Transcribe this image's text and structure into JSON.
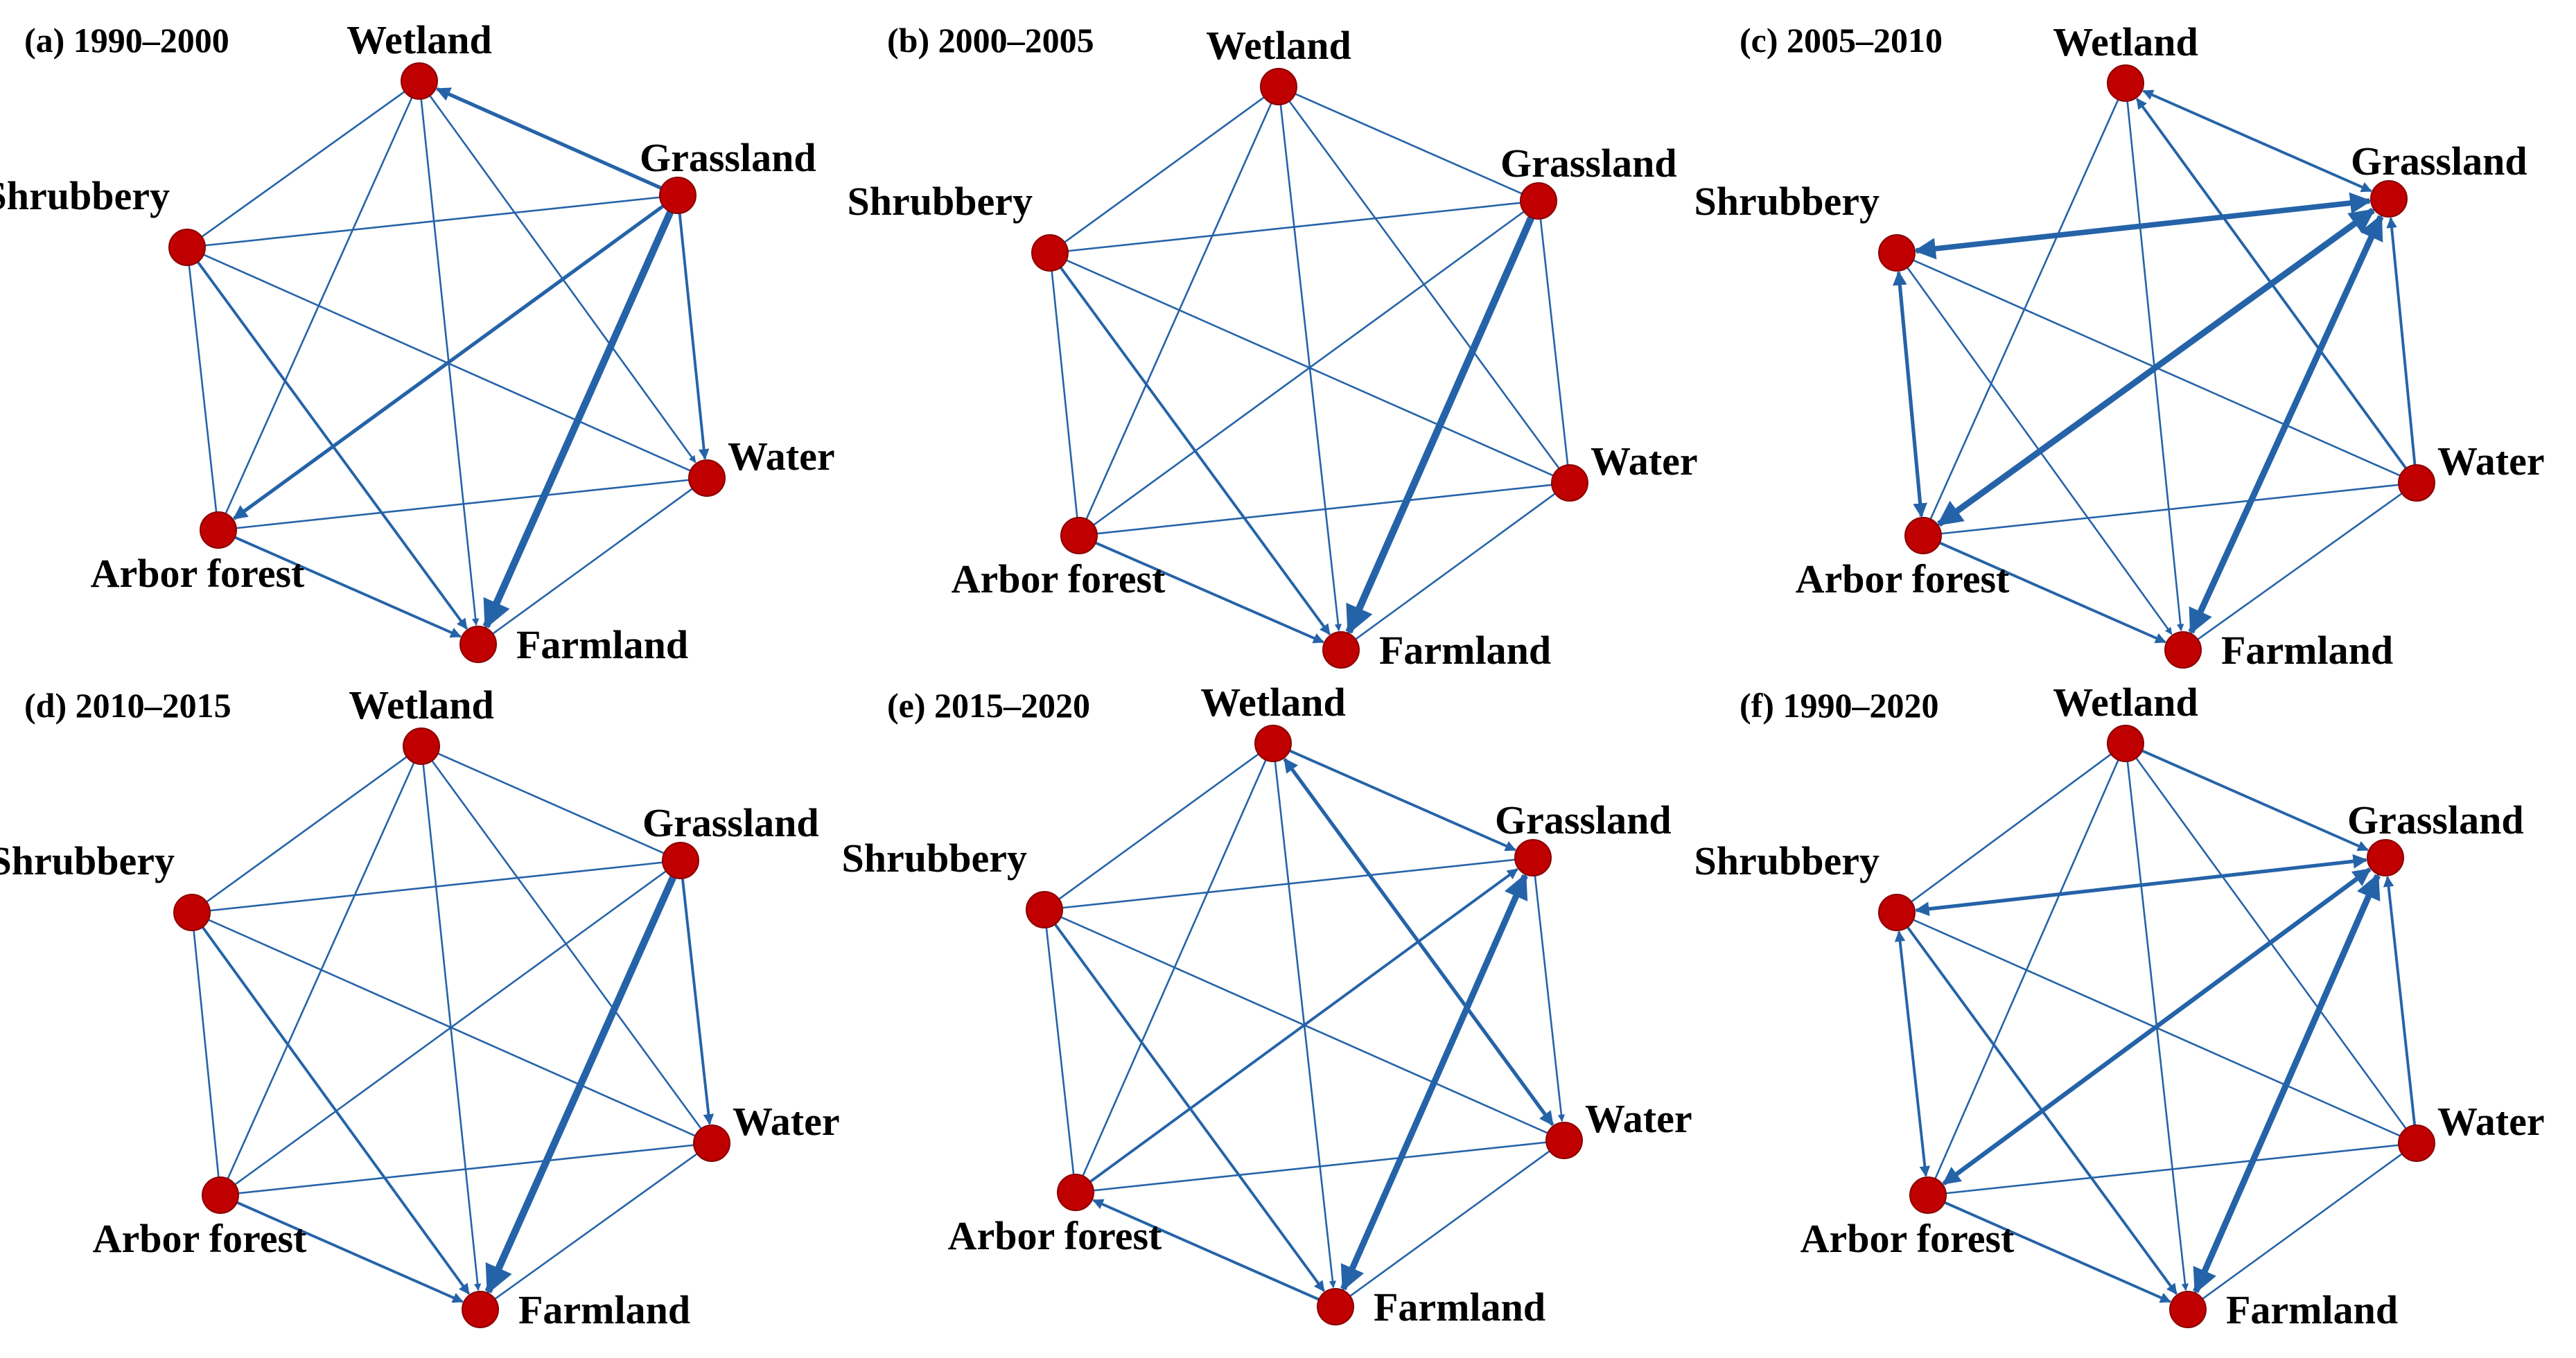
{
  "colors": {
    "edge": "#2563a8",
    "node_fill": "#c00000",
    "node_stroke": "#8a0000",
    "text": "#000000"
  },
  "panels": [
    {
      "title": "(a) 1990–2000",
      "labels": {
        "Wetland": "Wetland",
        "Grassland": "Grassland",
        "Water": "Water",
        "Farmland": "Farmland",
        "Arbor forest": "Arbor forest",
        "Shrubbery": "Shrubbery"
      },
      "edges": [
        {
          "from": "Grassland",
          "to": "Farmland",
          "weight": 4,
          "arrow": "to"
        },
        {
          "from": "Grassland",
          "to": "Arbor forest",
          "weight": 2,
          "arrow": "to"
        },
        {
          "from": "Grassland",
          "to": "Wetland",
          "weight": 2,
          "arrow": "to"
        },
        {
          "from": "Grassland",
          "to": "Water",
          "weight": 1.5,
          "arrow": "to"
        },
        {
          "from": "Shrubbery",
          "to": "Farmland",
          "weight": 1.5,
          "arrow": "to"
        },
        {
          "from": "Arbor forest",
          "to": "Farmland",
          "weight": 1.5,
          "arrow": "to"
        },
        {
          "from": "Wetland",
          "to": "Farmland",
          "weight": 1,
          "arrow": "to"
        },
        {
          "from": "Wetland",
          "to": "Water",
          "weight": 1,
          "arrow": "to"
        },
        {
          "from": "Wetland",
          "to": "Shrubbery",
          "weight": 1,
          "arrow": "none"
        },
        {
          "from": "Wetland",
          "to": "Arbor forest",
          "weight": 1,
          "arrow": "none"
        },
        {
          "from": "Shrubbery",
          "to": "Grassland",
          "weight": 1,
          "arrow": "none"
        },
        {
          "from": "Shrubbery",
          "to": "Water",
          "weight": 1,
          "arrow": "none"
        },
        {
          "from": "Shrubbery",
          "to": "Arbor forest",
          "weight": 1,
          "arrow": "none"
        },
        {
          "from": "Arbor forest",
          "to": "Water",
          "weight": 1,
          "arrow": "none"
        },
        {
          "from": "Water",
          "to": "Farmland",
          "weight": 1,
          "arrow": "none"
        }
      ]
    },
    {
      "title": "(b) 2000–2005",
      "labels": {
        "Wetland": "Wetland",
        "Grassland": "Grassland",
        "Water": "Water",
        "Farmland": "Farmland",
        "Arbor forest": "Arbor forest",
        "Shrubbery": "Shrubbery"
      },
      "edges": [
        {
          "from": "Grassland",
          "to": "Farmland",
          "weight": 4,
          "arrow": "to"
        },
        {
          "from": "Shrubbery",
          "to": "Farmland",
          "weight": 1.5,
          "arrow": "to"
        },
        {
          "from": "Arbor forest",
          "to": "Farmland",
          "weight": 1.5,
          "arrow": "to"
        },
        {
          "from": "Wetland",
          "to": "Farmland",
          "weight": 1,
          "arrow": "to"
        },
        {
          "from": "Wetland",
          "to": "Grassland",
          "weight": 1,
          "arrow": "none"
        },
        {
          "from": "Wetland",
          "to": "Water",
          "weight": 1,
          "arrow": "none"
        },
        {
          "from": "Wetland",
          "to": "Shrubbery",
          "weight": 1,
          "arrow": "none"
        },
        {
          "from": "Wetland",
          "to": "Arbor forest",
          "weight": 1,
          "arrow": "none"
        },
        {
          "from": "Shrubbery",
          "to": "Grassland",
          "weight": 1,
          "arrow": "none"
        },
        {
          "from": "Shrubbery",
          "to": "Water",
          "weight": 1,
          "arrow": "none"
        },
        {
          "from": "Shrubbery",
          "to": "Arbor forest",
          "weight": 1,
          "arrow": "none"
        },
        {
          "from": "Arbor forest",
          "to": "Grassland",
          "weight": 1,
          "arrow": "none"
        },
        {
          "from": "Arbor forest",
          "to": "Water",
          "weight": 1,
          "arrow": "none"
        },
        {
          "from": "Grassland",
          "to": "Water",
          "weight": 1,
          "arrow": "none"
        },
        {
          "from": "Water",
          "to": "Farmland",
          "weight": 1,
          "arrow": "none"
        }
      ]
    },
    {
      "title": "(c) 2005–2010",
      "labels": {
        "Wetland": "Wetland",
        "Grassland": "Grassland",
        "Water": "Water",
        "Farmland": "Farmland",
        "Arbor forest": "Arbor forest",
        "Shrubbery": "Shrubbery"
      },
      "edges": [
        {
          "from": "Grassland",
          "to": "Farmland",
          "weight": 3.5,
          "arrow": "both"
        },
        {
          "from": "Grassland",
          "to": "Arbor forest",
          "weight": 3.5,
          "arrow": "both"
        },
        {
          "from": "Grassland",
          "to": "Shrubbery",
          "weight": 3,
          "arrow": "both"
        },
        {
          "from": "Shrubbery",
          "to": "Arbor forest",
          "weight": 2,
          "arrow": "both"
        },
        {
          "from": "Wetland",
          "to": "Grassland",
          "weight": 1.5,
          "arrow": "both"
        },
        {
          "from": "Water",
          "to": "Grassland",
          "weight": 1.5,
          "arrow": "to"
        },
        {
          "from": "Water",
          "to": "Wetland",
          "weight": 1.5,
          "arrow": "to"
        },
        {
          "from": "Arbor forest",
          "to": "Farmland",
          "weight": 1.5,
          "arrow": "to"
        },
        {
          "from": "Shrubbery",
          "to": "Farmland",
          "weight": 1,
          "arrow": "to"
        },
        {
          "from": "Wetland",
          "to": "Farmland",
          "weight": 1,
          "arrow": "to"
        },
        {
          "from": "Wetland",
          "to": "Arbor forest",
          "weight": 1,
          "arrow": "none"
        },
        {
          "from": "Shrubbery",
          "to": "Water",
          "weight": 1,
          "arrow": "none"
        },
        {
          "from": "Arbor forest",
          "to": "Water",
          "weight": 1,
          "arrow": "none"
        },
        {
          "from": "Water",
          "to": "Farmland",
          "weight": 1,
          "arrow": "none"
        }
      ]
    },
    {
      "title": "(d) 2010–2015",
      "labels": {
        "Wetland": "Wetland",
        "Grassland": "Grassland",
        "Water": "Water",
        "Farmland": "Farmland",
        "Arbor forest": "Arbor forest",
        "Shrubbery": "Shrubbery"
      },
      "edges": [
        {
          "from": "Grassland",
          "to": "Farmland",
          "weight": 4,
          "arrow": "to"
        },
        {
          "from": "Grassland",
          "to": "Water",
          "weight": 1.5,
          "arrow": "to"
        },
        {
          "from": "Arbor forest",
          "to": "Farmland",
          "weight": 1.5,
          "arrow": "to"
        },
        {
          "from": "Shrubbery",
          "to": "Farmland",
          "weight": 1.5,
          "arrow": "to"
        },
        {
          "from": "Wetland",
          "to": "Farmland",
          "weight": 1,
          "arrow": "to"
        },
        {
          "from": "Wetland",
          "to": "Grassland",
          "weight": 1,
          "arrow": "none"
        },
        {
          "from": "Wetland",
          "to": "Water",
          "weight": 1,
          "arrow": "none"
        },
        {
          "from": "Wetland",
          "to": "Shrubbery",
          "weight": 1,
          "arrow": "none"
        },
        {
          "from": "Wetland",
          "to": "Arbor forest",
          "weight": 1,
          "arrow": "none"
        },
        {
          "from": "Shrubbery",
          "to": "Grassland",
          "weight": 1,
          "arrow": "none"
        },
        {
          "from": "Shrubbery",
          "to": "Water",
          "weight": 1,
          "arrow": "none"
        },
        {
          "from": "Shrubbery",
          "to": "Arbor forest",
          "weight": 1,
          "arrow": "none"
        },
        {
          "from": "Arbor forest",
          "to": "Grassland",
          "weight": 1,
          "arrow": "none"
        },
        {
          "from": "Arbor forest",
          "to": "Water",
          "weight": 1,
          "arrow": "none"
        },
        {
          "from": "Water",
          "to": "Farmland",
          "weight": 1,
          "arrow": "none"
        }
      ]
    },
    {
      "title": "(e) 2015–2020",
      "labels": {
        "Wetland": "Wetland",
        "Grassland": "Grassland",
        "Water": "Water",
        "Farmland": "Farmland",
        "Arbor forest": "Arbor forest",
        "Shrubbery": "Shrubbery"
      },
      "edges": [
        {
          "from": "Farmland",
          "to": "Grassland",
          "weight": 3.5,
          "arrow": "both"
        },
        {
          "from": "Wetland",
          "to": "Water",
          "weight": 2,
          "arrow": "both"
        },
        {
          "from": "Arbor forest",
          "to": "Grassland",
          "weight": 1.5,
          "arrow": "to"
        },
        {
          "from": "Farmland",
          "to": "Arbor forest",
          "weight": 1.5,
          "arrow": "to"
        },
        {
          "from": "Wetland",
          "to": "Grassland",
          "weight": 1.5,
          "arrow": "to"
        },
        {
          "from": "Shrubbery",
          "to": "Farmland",
          "weight": 1.5,
          "arrow": "to"
        },
        {
          "from": "Grassland",
          "to": "Water",
          "weight": 1,
          "arrow": "to"
        },
        {
          "from": "Wetland",
          "to": "Farmland",
          "weight": 1,
          "arrow": "to"
        },
        {
          "from": "Wetland",
          "to": "Shrubbery",
          "weight": 1,
          "arrow": "none"
        },
        {
          "from": "Wetland",
          "to": "Arbor forest",
          "weight": 1,
          "arrow": "none"
        },
        {
          "from": "Shrubbery",
          "to": "Grassland",
          "weight": 1,
          "arrow": "none"
        },
        {
          "from": "Shrubbery",
          "to": "Water",
          "weight": 1,
          "arrow": "none"
        },
        {
          "from": "Shrubbery",
          "to": "Arbor forest",
          "weight": 1,
          "arrow": "none"
        },
        {
          "from": "Arbor forest",
          "to": "Water",
          "weight": 1,
          "arrow": "none"
        },
        {
          "from": "Water",
          "to": "Farmland",
          "weight": 1,
          "arrow": "none"
        }
      ]
    },
    {
      "title": "(f) 1990–2020",
      "labels": {
        "Wetland": "Wetland",
        "Grassland": "Grassland",
        "Water": "Water",
        "Farmland": "Farmland",
        "Arbor forest": "Arbor forest",
        "Shrubbery": "Shrubbery"
      },
      "edges": [
        {
          "from": "Grassland",
          "to": "Farmland",
          "weight": 3.5,
          "arrow": "both"
        },
        {
          "from": "Grassland",
          "to": "Arbor forest",
          "weight": 2.5,
          "arrow": "both"
        },
        {
          "from": "Grassland",
          "to": "Shrubbery",
          "weight": 2,
          "arrow": "both"
        },
        {
          "from": "Shrubbery",
          "to": "Arbor forest",
          "weight": 1.5,
          "arrow": "both"
        },
        {
          "from": "Wetland",
          "to": "Grassland",
          "weight": 1.5,
          "arrow": "to"
        },
        {
          "from": "Water",
          "to": "Grassland",
          "weight": 1.5,
          "arrow": "to"
        },
        {
          "from": "Arbor forest",
          "to": "Farmland",
          "weight": 1.5,
          "arrow": "to"
        },
        {
          "from": "Shrubbery",
          "to": "Farmland",
          "weight": 1.5,
          "arrow": "to"
        },
        {
          "from": "Wetland",
          "to": "Farmland",
          "weight": 1,
          "arrow": "to"
        },
        {
          "from": "Wetland",
          "to": "Water",
          "weight": 1,
          "arrow": "none"
        },
        {
          "from": "Wetland",
          "to": "Shrubbery",
          "weight": 1,
          "arrow": "none"
        },
        {
          "from": "Wetland",
          "to": "Arbor forest",
          "weight": 1,
          "arrow": "none"
        },
        {
          "from": "Shrubbery",
          "to": "Water",
          "weight": 1,
          "arrow": "none"
        },
        {
          "from": "Arbor forest",
          "to": "Water",
          "weight": 1,
          "arrow": "none"
        },
        {
          "from": "Water",
          "to": "Farmland",
          "weight": 1,
          "arrow": "none"
        }
      ]
    }
  ]
}
